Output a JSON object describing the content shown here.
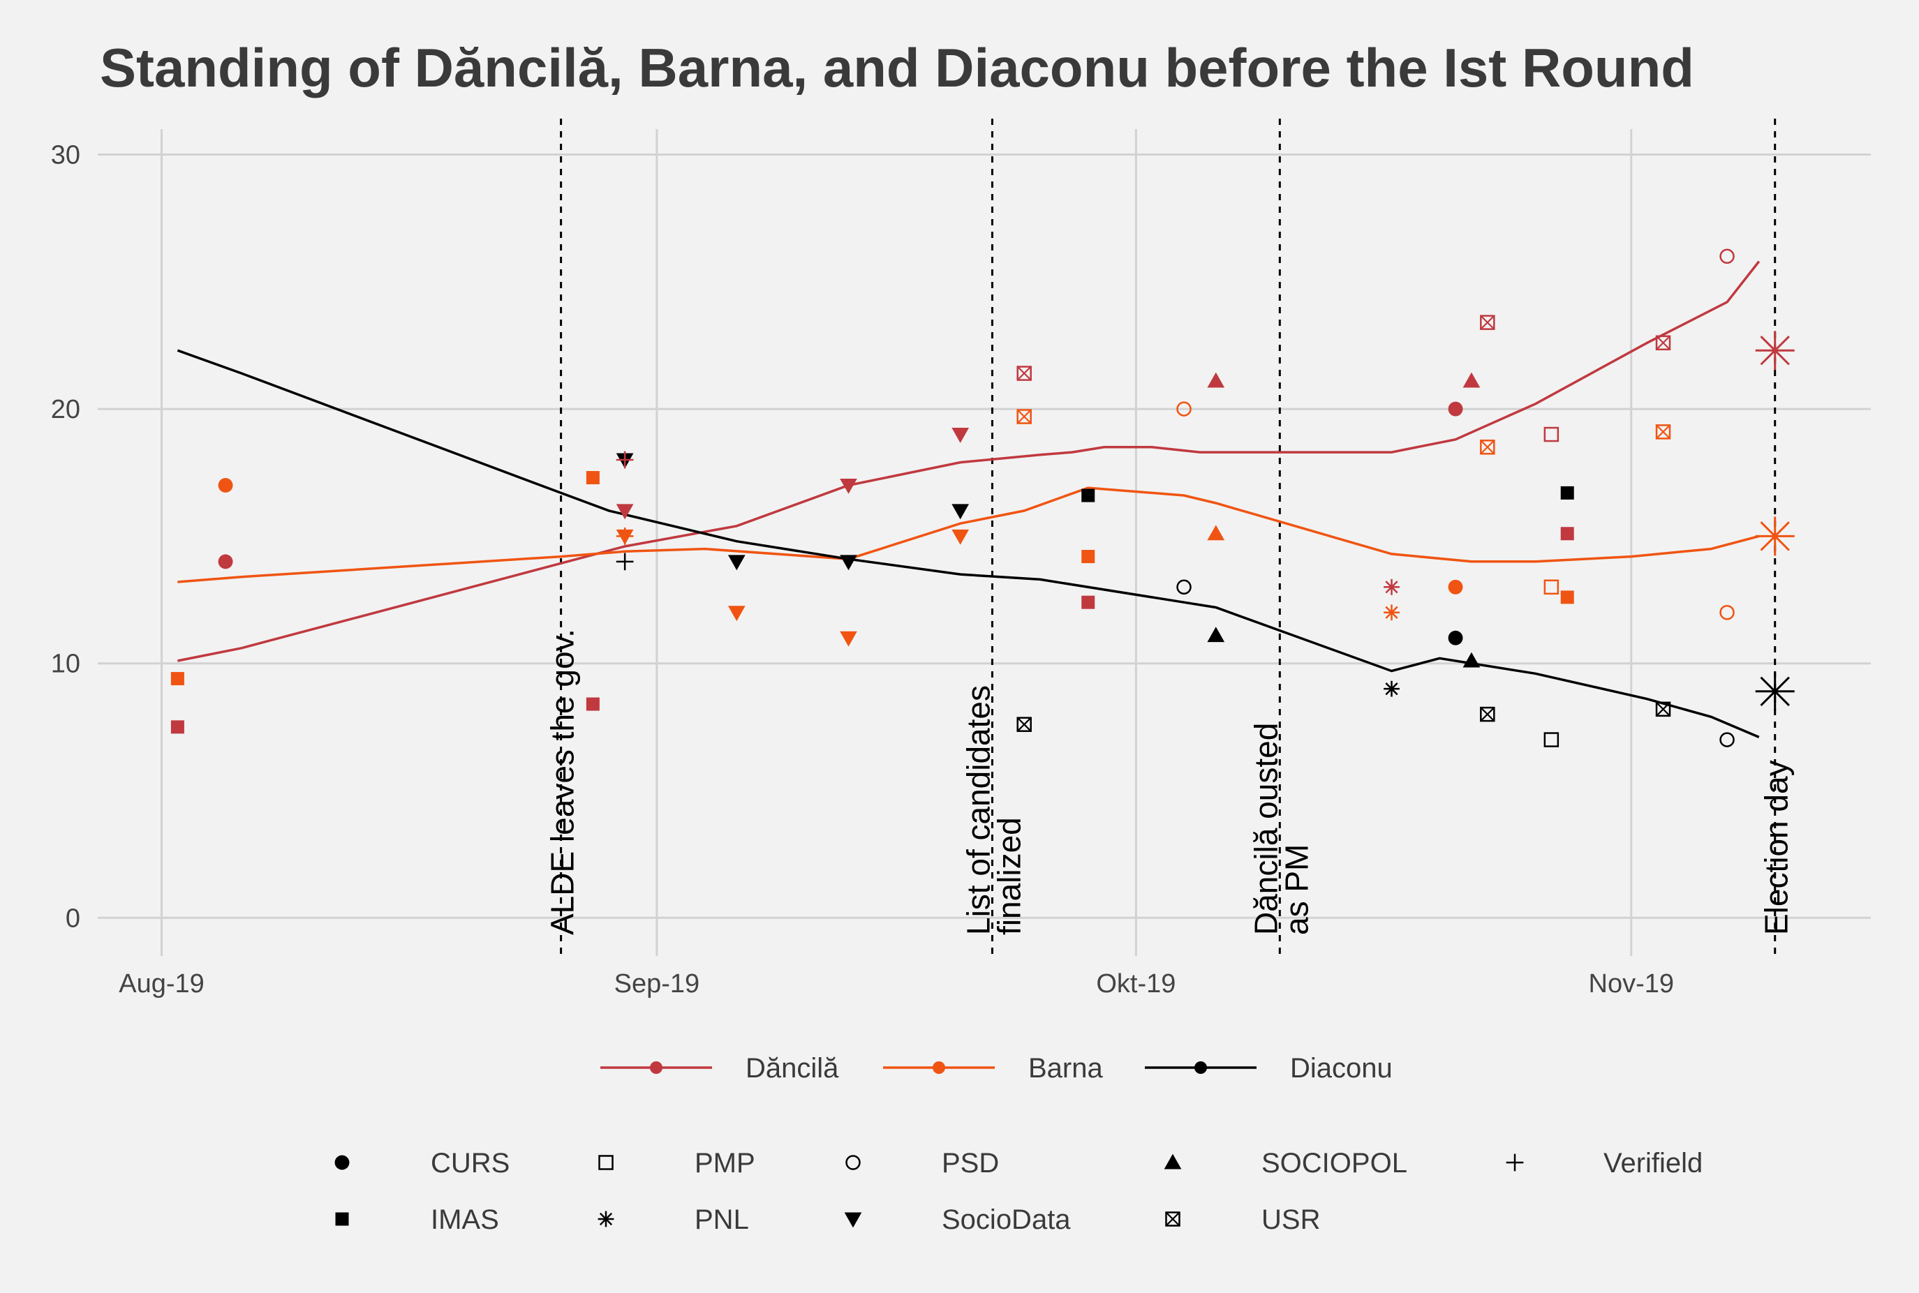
{
  "chart_data": {
    "type": "scatter",
    "title": "Standing of Dăncilă, Barna, and Diaconu before the Ist Round",
    "xlabel": "",
    "ylabel": "",
    "x_ticks": [
      {
        "date": "2019-08-01",
        "label": "Aug-19"
      },
      {
        "date": "2019-09-01",
        "label": "Sep-19"
      },
      {
        "date": "2019-10-01",
        "label": "Okt-19"
      },
      {
        "date": "2019-11-01",
        "label": "Nov-19"
      }
    ],
    "xlim": [
      "2019-07-28",
      "2019-11-16"
    ],
    "ylim": [
      -1.5,
      31
    ],
    "y_ticks": [
      0,
      10,
      20,
      30
    ],
    "grid": true,
    "legend_position": "bottom",
    "candidates": [
      {
        "key": "dancila",
        "name": "Dăncilă",
        "color": "#c0393f"
      },
      {
        "key": "barna",
        "name": "Barna",
        "color": "#f05412"
      },
      {
        "key": "diaconu",
        "name": "Diaconu",
        "color": "#000000"
      }
    ],
    "pollsters": [
      {
        "name": "CURS",
        "shape": "circle"
      },
      {
        "name": "PMP",
        "shape": "square-open"
      },
      {
        "name": "PSD",
        "shape": "circle-open"
      },
      {
        "name": "SOCIOPOL",
        "shape": "triangle"
      },
      {
        "name": "Verifield",
        "shape": "plus"
      },
      {
        "name": "IMAS",
        "shape": "square"
      },
      {
        "name": "PNL",
        "shape": "asterisk"
      },
      {
        "name": "SocioData",
        "shape": "triangle-down"
      },
      {
        "name": "USR",
        "shape": "square-x"
      }
    ],
    "events": [
      {
        "date": "2019-08-26",
        "lines": [
          "ALDE leaves the gov."
        ]
      },
      {
        "date": "2019-09-22",
        "lines": [
          "List of candidates",
          "finalized"
        ]
      },
      {
        "date": "2019-10-10",
        "lines": [
          "Dăncilă ousted",
          "as PM"
        ]
      },
      {
        "date": "2019-11-10",
        "lines": [
          "Election day"
        ]
      }
    ],
    "trend_lines": [
      {
        "candidate": "dancila",
        "points": [
          [
            "2019-08-02",
            10.1
          ],
          [
            "2019-08-06",
            10.6
          ],
          [
            "2019-08-30",
            14.6
          ],
          [
            "2019-09-06",
            15.4
          ],
          [
            "2019-09-13",
            17.0
          ],
          [
            "2019-09-20",
            17.9
          ],
          [
            "2019-09-25",
            18.2
          ],
          [
            "2019-09-27",
            18.3
          ],
          [
            "2019-09-29",
            18.5
          ],
          [
            "2019-10-02",
            18.5
          ],
          [
            "2019-10-05",
            18.3
          ],
          [
            "2019-10-12",
            18.3
          ],
          [
            "2019-10-17",
            18.3
          ],
          [
            "2019-10-21",
            18.8
          ],
          [
            "2019-10-26",
            20.2
          ],
          [
            "2019-11-02",
            22.6
          ],
          [
            "2019-11-07",
            24.2
          ],
          [
            "2019-11-09",
            25.8
          ]
        ]
      },
      {
        "candidate": "barna",
        "points": [
          [
            "2019-08-02",
            13.2
          ],
          [
            "2019-08-06",
            13.4
          ],
          [
            "2019-08-26",
            14.2
          ],
          [
            "2019-08-30",
            14.4
          ],
          [
            "2019-09-04",
            14.5
          ],
          [
            "2019-09-13",
            14.1
          ],
          [
            "2019-09-20",
            15.5
          ],
          [
            "2019-09-24",
            16.0
          ],
          [
            "2019-09-28",
            16.9
          ],
          [
            "2019-10-04",
            16.6
          ],
          [
            "2019-10-06",
            16.3
          ],
          [
            "2019-10-17",
            14.3
          ],
          [
            "2019-10-22",
            14.0
          ],
          [
            "2019-10-26",
            14.0
          ],
          [
            "2019-11-01",
            14.2
          ],
          [
            "2019-11-06",
            14.5
          ],
          [
            "2019-11-09",
            15.0
          ]
        ]
      },
      {
        "candidate": "diaconu",
        "points": [
          [
            "2019-08-02",
            22.3
          ],
          [
            "2019-08-06",
            21.4
          ],
          [
            "2019-08-26",
            16.7
          ],
          [
            "2019-08-29",
            16.0
          ],
          [
            "2019-09-06",
            14.8
          ],
          [
            "2019-09-13",
            14.1
          ],
          [
            "2019-09-20",
            13.5
          ],
          [
            "2019-09-25",
            13.3
          ],
          [
            "2019-10-04",
            12.4
          ],
          [
            "2019-10-06",
            12.2
          ],
          [
            "2019-10-17",
            9.7
          ],
          [
            "2019-10-20",
            10.2
          ],
          [
            "2019-10-26",
            9.6
          ],
          [
            "2019-11-02",
            8.6
          ],
          [
            "2019-11-06",
            7.9
          ],
          [
            "2019-11-09",
            7.1
          ]
        ]
      }
    ],
    "points": [
      {
        "candidate": "dancila",
        "pollster": "IMAS",
        "date": "2019-08-02",
        "value": 7.5
      },
      {
        "candidate": "barna",
        "pollster": "IMAS",
        "date": "2019-08-02",
        "value": 9.4
      },
      {
        "candidate": "dancila",
        "pollster": "CURS",
        "date": "2019-08-05",
        "value": 14.0
      },
      {
        "candidate": "barna",
        "pollster": "CURS",
        "date": "2019-08-05",
        "value": 17.0
      },
      {
        "candidate": "dancila",
        "pollster": "IMAS",
        "date": "2019-08-28",
        "value": 8.4
      },
      {
        "candidate": "barna",
        "pollster": "IMAS",
        "date": "2019-08-28",
        "value": 17.3
      },
      {
        "candidate": "dancila",
        "pollster": "SocioData",
        "date": "2019-08-30",
        "value": 16.0
      },
      {
        "candidate": "barna",
        "pollster": "SocioData",
        "date": "2019-08-30",
        "value": 15.0
      },
      {
        "candidate": "diaconu",
        "pollster": "SocioData",
        "date": "2019-08-30",
        "value": 18.0
      },
      {
        "candidate": "dancila",
        "pollster": "Verifield",
        "date": "2019-08-30",
        "value": 18.0
      },
      {
        "candidate": "barna",
        "pollster": "Verifield",
        "date": "2019-08-30",
        "value": 15.0
      },
      {
        "candidate": "diaconu",
        "pollster": "Verifield",
        "date": "2019-08-30",
        "value": 14.0
      },
      {
        "candidate": "barna",
        "pollster": "SocioData",
        "date": "2019-09-06",
        "value": 12.0
      },
      {
        "candidate": "diaconu",
        "pollster": "SocioData",
        "date": "2019-09-06",
        "value": 14.0
      },
      {
        "candidate": "dancila",
        "pollster": "SocioData",
        "date": "2019-09-13",
        "value": 17.0
      },
      {
        "candidate": "barna",
        "pollster": "SocioData",
        "date": "2019-09-13",
        "value": 11.0
      },
      {
        "candidate": "diaconu",
        "pollster": "SocioData",
        "date": "2019-09-13",
        "value": 14.0
      },
      {
        "candidate": "dancila",
        "pollster": "SocioData",
        "date": "2019-09-20",
        "value": 19.0
      },
      {
        "candidate": "barna",
        "pollster": "SocioData",
        "date": "2019-09-20",
        "value": 15.0
      },
      {
        "candidate": "diaconu",
        "pollster": "SocioData",
        "date": "2019-09-20",
        "value": 16.0
      },
      {
        "candidate": "dancila",
        "pollster": "USR",
        "date": "2019-09-24",
        "value": 21.4
      },
      {
        "candidate": "barna",
        "pollster": "USR",
        "date": "2019-09-24",
        "value": 19.7
      },
      {
        "candidate": "diaconu",
        "pollster": "USR",
        "date": "2019-09-24",
        "value": 7.6
      },
      {
        "candidate": "dancila",
        "pollster": "IMAS",
        "date": "2019-09-28",
        "value": 12.4
      },
      {
        "candidate": "barna",
        "pollster": "IMAS",
        "date": "2019-09-28",
        "value": 14.2
      },
      {
        "candidate": "diaconu",
        "pollster": "IMAS",
        "date": "2019-09-28",
        "value": 16.6
      },
      {
        "candidate": "barna",
        "pollster": "PSD",
        "date": "2019-10-04",
        "value": 20.0
      },
      {
        "candidate": "diaconu",
        "pollster": "PSD",
        "date": "2019-10-04",
        "value": 13.0
      },
      {
        "candidate": "dancila",
        "pollster": "SOCIOPOL",
        "date": "2019-10-06",
        "value": 21.1
      },
      {
        "candidate": "barna",
        "pollster": "SOCIOPOL",
        "date": "2019-10-06",
        "value": 15.1
      },
      {
        "candidate": "diaconu",
        "pollster": "SOCIOPOL",
        "date": "2019-10-06",
        "value": 11.1
      },
      {
        "candidate": "dancila",
        "pollster": "PNL",
        "date": "2019-10-17",
        "value": 13.0
      },
      {
        "candidate": "barna",
        "pollster": "PNL",
        "date": "2019-10-17",
        "value": 12.0
      },
      {
        "candidate": "diaconu",
        "pollster": "PNL",
        "date": "2019-10-17",
        "value": 9.0
      },
      {
        "candidate": "dancila",
        "pollster": "CURS",
        "date": "2019-10-21",
        "value": 20.0
      },
      {
        "candidate": "barna",
        "pollster": "CURS",
        "date": "2019-10-21",
        "value": 13.0
      },
      {
        "candidate": "diaconu",
        "pollster": "CURS",
        "date": "2019-10-21",
        "value": 11.0
      },
      {
        "candidate": "dancila",
        "pollster": "SOCIOPOL",
        "date": "2019-10-22",
        "value": 21.1
      },
      {
        "candidate": "diaconu",
        "pollster": "SOCIOPOL",
        "date": "2019-10-22",
        "value": 10.1
      },
      {
        "candidate": "dancila",
        "pollster": "USR",
        "date": "2019-10-23",
        "value": 23.4
      },
      {
        "candidate": "barna",
        "pollster": "USR",
        "date": "2019-10-23",
        "value": 18.5
      },
      {
        "candidate": "diaconu",
        "pollster": "USR",
        "date": "2019-10-23",
        "value": 8.0
      },
      {
        "candidate": "dancila",
        "pollster": "PMP",
        "date": "2019-10-27",
        "value": 19.0
      },
      {
        "candidate": "barna",
        "pollster": "PMP",
        "date": "2019-10-27",
        "value": 13.0
      },
      {
        "candidate": "diaconu",
        "pollster": "PMP",
        "date": "2019-10-27",
        "value": 7.0
      },
      {
        "candidate": "dancila",
        "pollster": "IMAS",
        "date": "2019-10-28",
        "value": 15.1
      },
      {
        "candidate": "barna",
        "pollster": "IMAS",
        "date": "2019-10-28",
        "value": 12.6
      },
      {
        "candidate": "diaconu",
        "pollster": "IMAS",
        "date": "2019-10-28",
        "value": 16.7
      },
      {
        "candidate": "dancila",
        "pollster": "USR",
        "date": "2019-11-03",
        "value": 22.6
      },
      {
        "candidate": "barna",
        "pollster": "USR",
        "date": "2019-11-03",
        "value": 19.1
      },
      {
        "candidate": "diaconu",
        "pollster": "USR",
        "date": "2019-11-03",
        "value": 8.2
      },
      {
        "candidate": "dancila",
        "pollster": "PSD",
        "date": "2019-11-07",
        "value": 26.0
      },
      {
        "candidate": "barna",
        "pollster": "PSD",
        "date": "2019-11-07",
        "value": 12.0
      },
      {
        "candidate": "diaconu",
        "pollster": "PSD",
        "date": "2019-11-07",
        "value": 7.0
      }
    ],
    "results": [
      {
        "candidate": "dancila",
        "date": "2019-11-10",
        "value": 22.3
      },
      {
        "candidate": "barna",
        "date": "2019-11-10",
        "value": 15.0
      },
      {
        "candidate": "diaconu",
        "date": "2019-11-10",
        "value": 8.9
      }
    ]
  }
}
